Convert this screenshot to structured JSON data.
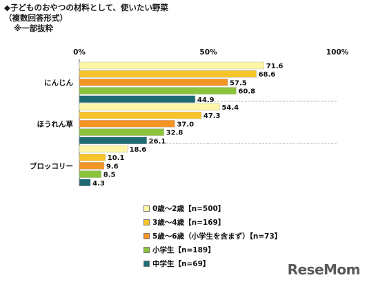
{
  "header": {
    "title": "◆子どものおやつの材料として、使いたい野菜",
    "subtitle": "（複数回答形式）",
    "note": "※一部抜粋"
  },
  "chart_data": {
    "type": "bar",
    "orientation": "horizontal",
    "categories": [
      "にんじん",
      "ほうれん草",
      "ブロッコリー"
    ],
    "x_ticks": [
      "0%",
      "50%",
      "100%"
    ],
    "xlim": [
      0,
      100
    ],
    "series": [
      {
        "name": "0歳～2歳【n=500】",
        "color": "#fdf6a8",
        "values": [
          71.6,
          54.4,
          18.6
        ]
      },
      {
        "name": "3歳～4歳【n=169】",
        "color": "#f7c42a",
        "values": [
          68.6,
          47.3,
          10.1
        ]
      },
      {
        "name": "5歳～6歳（小学生を含まず）【n=73】",
        "color": "#f39423",
        "values": [
          57.5,
          37.0,
          9.6
        ]
      },
      {
        "name": "小学生【n=189】",
        "color": "#8bc33b",
        "values": [
          60.8,
          32.8,
          8.5
        ]
      },
      {
        "name": "中学生【n=69】",
        "color": "#1f6b73",
        "values": [
          44.9,
          26.1,
          4.3
        ]
      }
    ],
    "value_labels": [
      [
        "71.6",
        "68.6",
        "57.5",
        "60.8",
        "44.9"
      ],
      [
        "54.4",
        "47.3",
        "37.0",
        "32.8",
        "26.1"
      ],
      [
        "18.6",
        "10.1",
        "9.6",
        "8.5",
        "4.3"
      ]
    ],
    "legend_position": "bottom"
  },
  "brand": {
    "logo_text": "ReseMom"
  }
}
